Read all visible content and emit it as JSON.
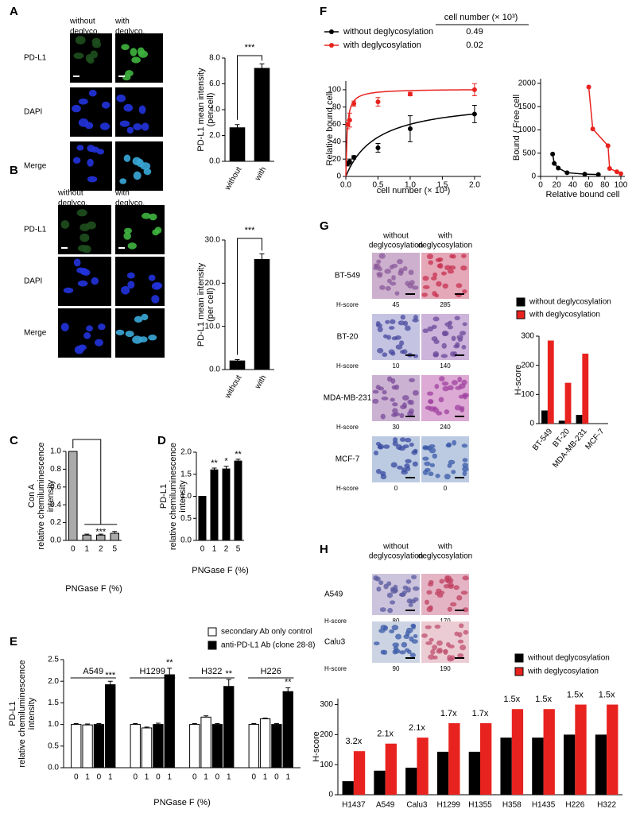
{
  "panel_labels": [
    "A",
    "B",
    "C",
    "D",
    "E",
    "F",
    "G",
    "H"
  ],
  "images": {
    "A": {
      "columns": [
        [
          "without",
          "deglyco."
        ],
        [
          "with",
          "deglyco."
        ]
      ],
      "rows": [
        "PD-L1",
        "DAPI",
        "Merge"
      ]
    },
    "B": {
      "columns": [
        [
          "without",
          "deglyco."
        ],
        [
          "with",
          "deglyco."
        ]
      ],
      "rows": [
        "PD-L1",
        "DAPI",
        "Merge"
      ]
    },
    "G": {
      "columns": [
        [
          "without",
          "deglycosylation"
        ],
        [
          "with",
          "deglycosylation"
        ]
      ],
      "rows": [
        "BT-549",
        "BT-20",
        "MDA-MB-231",
        "MCF-7"
      ],
      "score_label": "H-score",
      "scores": [
        [
          45,
          285
        ],
        [
          10,
          140
        ],
        [
          30,
          240
        ],
        [
          0,
          0
        ]
      ]
    },
    "H": {
      "columns": [
        [
          "without",
          "deglycosylation"
        ],
        [
          "with",
          "deglycosylation"
        ]
      ],
      "rows": [
        "A549",
        "Calu3"
      ],
      "score_label": "H-score",
      "scores": [
        [
          80,
          170
        ],
        [
          90,
          190
        ]
      ]
    }
  },
  "chart_data": [
    {
      "type": "bar",
      "ylabel": [
        "PD-L1 mean intensity",
        "(per cell)"
      ],
      "categories": [
        "without",
        "with"
      ],
      "values": [
        2.6,
        7.2
      ],
      "errors": [
        0.25,
        0.35
      ],
      "color": "#000000",
      "ylim": [
        0,
        8
      ],
      "yticks": [
        {
          "value": 0,
          "label": "0.0"
        },
        {
          "value": 2,
          "label": "2.0"
        },
        {
          "value": 4,
          "label": "4.0"
        },
        {
          "value": 6,
          "label": "6.0"
        },
        {
          "value": 8,
          "label": "8.0"
        }
      ],
      "annotations": [
        "***"
      ]
    },
    {
      "type": "bar",
      "ylabel": [
        "PD-L1 mean intensity",
        "(per cell)"
      ],
      "categories": [
        "without",
        "with"
      ],
      "values": [
        2.0,
        25.5
      ],
      "errors": [
        0.3,
        1.3
      ],
      "color": "#000000",
      "ylim": [
        0,
        30
      ],
      "yticks": [
        {
          "value": 0,
          "label": "0.0"
        },
        {
          "value": 10,
          "label": "10.0"
        },
        {
          "value": 20,
          "label": "20.0"
        },
        {
          "value": 30,
          "label": "30.0"
        }
      ],
      "annotations": [
        "***"
      ]
    },
    {
      "type": "bar",
      "ylabel": [
        "Con A",
        "relative chemiluminescence",
        "intensity"
      ],
      "xlabel": "PNGase F (%)",
      "categories": [
        "0",
        "1",
        "2",
        "5"
      ],
      "values": [
        1.0,
        0.06,
        0.06,
        0.08
      ],
      "errors": [
        0,
        0.01,
        0.01,
        0.02
      ],
      "color": "#aaaaaa",
      "ylim": [
        0,
        1.0
      ],
      "yticks": [
        {
          "value": 0,
          "label": "0.0"
        },
        0.2,
        0.4,
        0.6,
        0.8,
        {
          "value": 1,
          "label": "1.0"
        }
      ],
      "annotations": [
        "***"
      ]
    },
    {
      "type": "bar",
      "ylabel": [
        "PD-L1",
        "relative chemiluminescence",
        "intensity"
      ],
      "xlabel": "PNGase F (%)",
      "categories": [
        "0",
        "1",
        "2",
        "5"
      ],
      "values": [
        1.0,
        1.6,
        1.62,
        1.8
      ],
      "errors": [
        0,
        0.04,
        0.06,
        0.04
      ],
      "color": "#000000",
      "ylim": [
        0,
        2
      ],
      "yticks": [
        {
          "value": 0,
          "label": "0.0"
        },
        0.5,
        {
          "value": 1,
          "label": "1.0"
        },
        1.5,
        {
          "value": 2,
          "label": "2.0"
        }
      ],
      "annotations": [
        null,
        "**",
        "*",
        "**"
      ]
    },
    {
      "type": "grouped_bar",
      "ylabel": [
        "PD-L1",
        "relative chemiluminescence",
        "intensity"
      ],
      "xlabel": "PNGase F (%)",
      "groups": [
        "A549",
        "H1299",
        "H322",
        "H226"
      ],
      "levels": [
        "0",
        "1"
      ],
      "series": [
        {
          "name": "secondary Ab only control",
          "color": "#ffffff",
          "values": [
            1.0,
            0.99,
            1.0,
            0.92,
            1.0,
            1.17,
            1.0,
            1.13
          ],
          "errors": [
            0.02,
            0.02,
            0.02,
            0.02,
            0.02,
            0.03,
            0.02,
            0.02
          ]
        },
        {
          "name": "anti-PD-L1 Ab (clone 28-8)",
          "color": "#000000",
          "values": [
            1.0,
            1.92,
            1.0,
            2.15,
            1.0,
            1.88,
            1.0,
            1.76
          ],
          "errors": [
            0.02,
            0.08,
            0.03,
            0.15,
            0.02,
            0.16,
            0.02,
            0.09
          ]
        }
      ],
      "ylim": [
        0,
        2.5
      ],
      "yticks": [
        {
          "value": 0,
          "label": "0.0"
        },
        0.5,
        {
          "value": 1,
          "label": "1.0"
        },
        1.5,
        {
          "value": 2,
          "label": "2.0"
        },
        2.5
      ],
      "annotations": [
        "***",
        "**",
        "**",
        "**"
      ]
    },
    {
      "type": "scatter",
      "ylabel": "Relative bound cell",
      "xlabel": "cell number (× 10³)",
      "table_header": "cell number (× 10³)",
      "series": [
        {
          "name": "without deglycosylation",
          "color": "#000000",
          "kd": 0.49,
          "x": [
            0.03,
            0.06,
            0.125,
            0.5,
            1.0,
            2.0
          ],
          "values": [
            15,
            17,
            22,
            33,
            55,
            72
          ],
          "errors": [
            3,
            3,
            2,
            5,
            15,
            10
          ]
        },
        {
          "name": "with deglycosylation",
          "color": "#e8231f",
          "kd": 0.02,
          "x": [
            0.03,
            0.06,
            0.125,
            0.5,
            1.0,
            2.0
          ],
          "values": [
            60,
            65,
            84,
            86,
            95,
            100
          ],
          "errors": [
            5,
            8,
            3,
            5,
            2,
            7
          ]
        }
      ],
      "xlim": [
        0,
        2.1
      ],
      "xticks": [
        {
          "value": 0,
          "label": "0.0"
        },
        0.5,
        {
          "value": 1,
          "label": "1.0"
        },
        1.5,
        {
          "value": 2,
          "label": "2.0"
        }
      ],
      "ylim": [
        0,
        110
      ],
      "yticks": [
        0,
        20,
        40,
        60,
        80,
        100
      ]
    },
    {
      "type": "scatter",
      "ylabel": "Bound / Free cell",
      "xlabel": "Relative bound cell",
      "connect": true,
      "series": [
        {
          "color": "#000000",
          "x": [
            15,
            17,
            22,
            33,
            55,
            72
          ],
          "values": [
            480,
            280,
            180,
            80,
            50,
            40
          ]
        },
        {
          "color": "#e8231f",
          "x": [
            60,
            65,
            84,
            86,
            95,
            100
          ],
          "values": [
            1920,
            1020,
            660,
            170,
            100,
            60
          ]
        }
      ],
      "xlim": [
        0,
        105
      ],
      "xticks": [
        0,
        20,
        40,
        60,
        80,
        100
      ],
      "ylim": [
        0,
        2100
      ],
      "yticks": [
        0,
        500,
        1000,
        1500,
        2000
      ]
    },
    {
      "type": "grouped_bar",
      "ylabel": "H-score",
      "categories": [
        "BT-549",
        "BT-20",
        "MDA-MB-231",
        "MCF-7"
      ],
      "series": [
        {
          "name": "without deglycosylation",
          "color": "#000000",
          "values": [
            45,
            10,
            30,
            0
          ]
        },
        {
          "name": "with deglycosylation",
          "color": "#e8231f",
          "values": [
            285,
            140,
            240,
            0
          ]
        }
      ],
      "ylim": [
        0,
        300
      ],
      "yticks": [
        0,
        100,
        200,
        300
      ]
    },
    {
      "type": "grouped_bar",
      "ylabel": "H-score",
      "categories": [
        "H1437",
        "A549",
        "Calu3",
        "H1299",
        "H1355",
        "H358",
        "H1435",
        "H226",
        "H322"
      ],
      "series": [
        {
          "name": "without deglycosylation",
          "color": "#000000",
          "values": [
            45,
            80,
            90,
            143,
            143,
            190,
            190,
            200,
            200
          ]
        },
        {
          "name": "with deglycosylation",
          "color": "#e8231f",
          "values": [
            145,
            170,
            190,
            238,
            238,
            285,
            285,
            300,
            300
          ]
        }
      ],
      "annotations": [
        "3.2x",
        "2.1x",
        "2.1x",
        "1.7x",
        "1.7x",
        "1.5x",
        "1.5x",
        "1.5x",
        "1.5x"
      ],
      "ylim": [
        0,
        320
      ],
      "yticks": [
        0,
        100,
        200,
        300
      ]
    }
  ]
}
